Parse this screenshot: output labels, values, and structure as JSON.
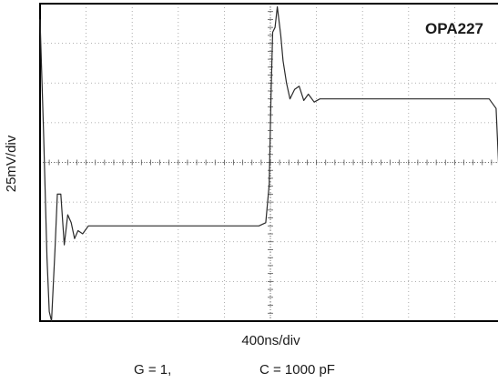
{
  "chart_data": {
    "type": "line",
    "title": "OPA227",
    "xlabel": "400ns/div",
    "ylabel": "25mV/div",
    "conditions": [
      "G = 1,",
      "C = 1000 pF"
    ],
    "divisions": {
      "x": 10,
      "y": 8
    },
    "grid": true,
    "xlim": [
      0,
      4000
    ],
    "ylim": [
      -100,
      100
    ],
    "series": [
      {
        "x": [
          0,
          30,
          60,
          80,
          100,
          130,
          150,
          180,
          210,
          240,
          270,
          300,
          330,
          370,
          420,
          500,
          800,
          1200,
          1600,
          1900,
          1960,
          1990,
          2005,
          2020,
          2040,
          2060,
          2090,
          2110,
          2140,
          2170,
          2210,
          2250,
          2290,
          2330,
          2380,
          2430,
          2550,
          2800,
          3200,
          3600,
          3900,
          3960,
          3990,
          4000
        ],
        "y": [
          90,
          20,
          -60,
          -94,
          -100,
          -55,
          -20,
          -20,
          -52,
          -33,
          -38,
          -48,
          -43,
          -45,
          -40,
          -40,
          -40,
          -40,
          -40,
          -40,
          -38,
          -14,
          40,
          82,
          85,
          98,
          80,
          64,
          50,
          40,
          46,
          48,
          39,
          43,
          38,
          40,
          40,
          40,
          40,
          40,
          40,
          34,
          -15,
          -15
        ]
      }
    ]
  }
}
